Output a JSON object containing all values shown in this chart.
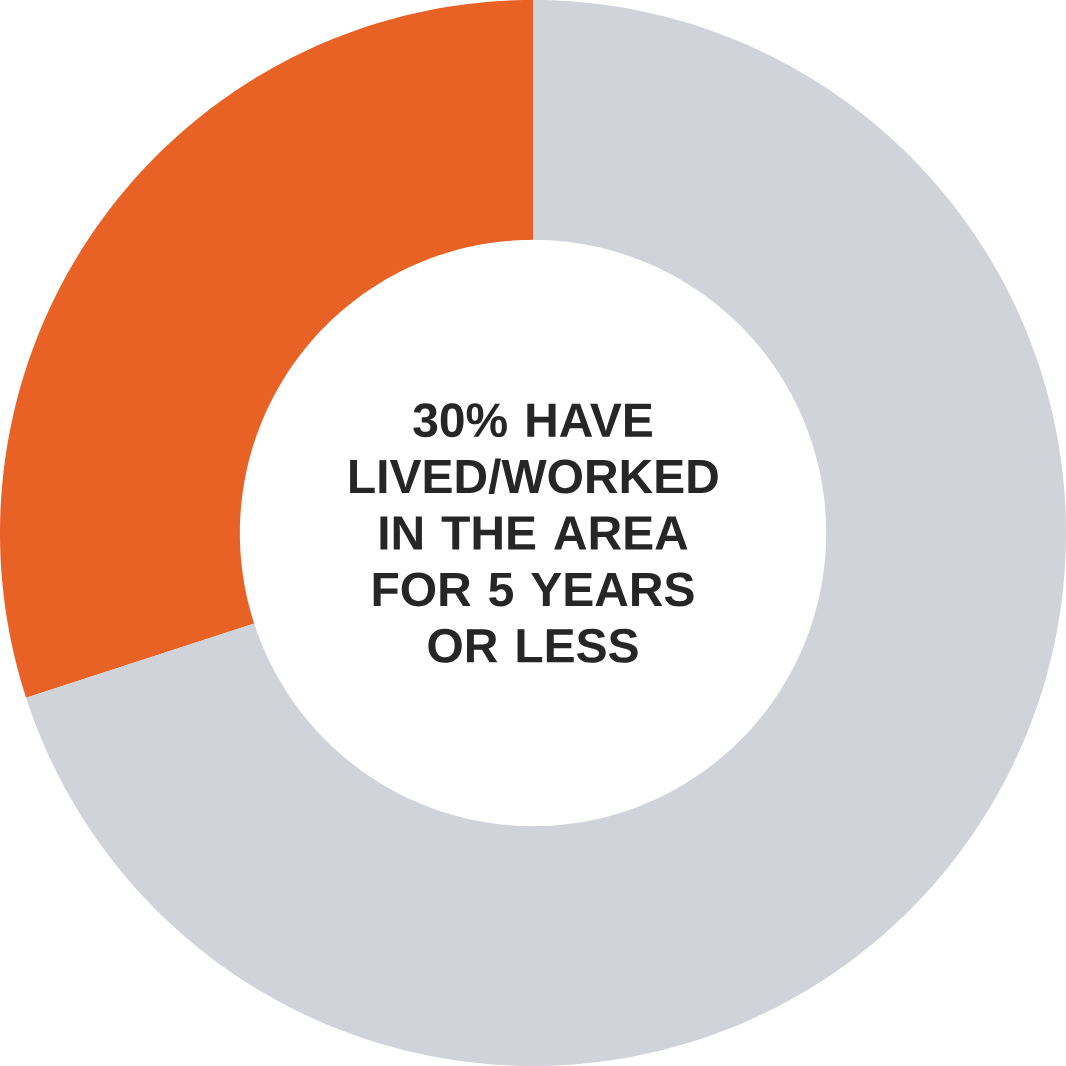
{
  "chart_data": {
    "type": "donut",
    "title": "30% HAVE LIVED/WORKED IN THE AREA FOR 5 YEARS OR LESS",
    "categories": [
      null,
      null
    ],
    "values": [
      30,
      70
    ],
    "colors": [
      "#e86226",
      "#d0d4da"
    ]
  }
}
